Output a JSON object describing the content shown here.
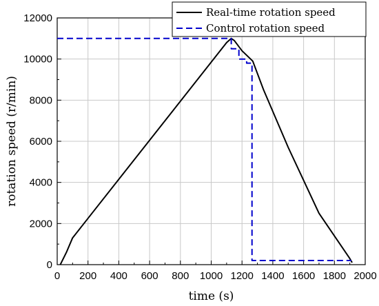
{
  "chart_data": {
    "type": "line",
    "xlabel": "time (s)",
    "ylabel": "rotation speed (r/min)",
    "xlim": [
      0,
      2000
    ],
    "ylim": [
      0,
      12000
    ],
    "xticks": [
      0,
      200,
      400,
      600,
      800,
      1000,
      1200,
      1400,
      1600,
      1800,
      2000
    ],
    "yticks": [
      0,
      2000,
      4000,
      6000,
      8000,
      10000,
      12000
    ],
    "grid": true,
    "legend_position": "top-right",
    "series": [
      {
        "name": "Real-time rotation speed",
        "color": "#000000",
        "style": "solid",
        "x": [
          20,
          60,
          100,
          1100,
          1130,
          1150,
          1200,
          1270,
          1340,
          1500,
          1700,
          1900,
          1915
        ],
        "y": [
          0,
          600,
          1300,
          10800,
          11000,
          10900,
          10400,
          9900,
          8500,
          5700,
          2500,
          300,
          100
        ]
      },
      {
        "name": "Control rotation speed",
        "color": "#0000cc",
        "style": "dashed",
        "x": [
          0,
          1130,
          1130,
          1180,
          1180,
          1230,
          1230,
          1265,
          1265,
          1910
        ],
        "y": [
          11000,
          11000,
          10500,
          10500,
          10000,
          10000,
          9800,
          9800,
          200,
          200
        ]
      }
    ]
  }
}
